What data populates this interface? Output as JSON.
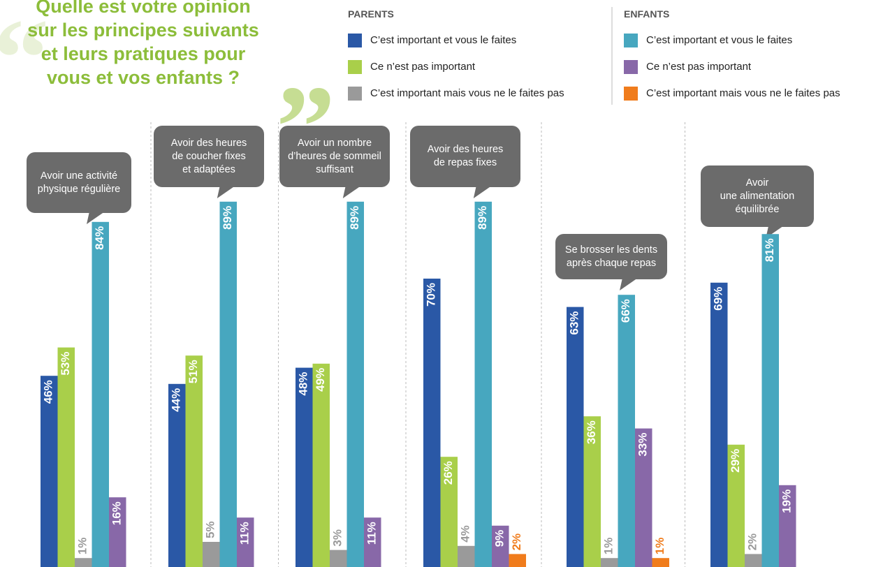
{
  "chart_data": {
    "type": "bar",
    "title": "Quelle est votre opinion\nsur les principes suivants\net leurs pratiques pour\nvous et vos enfants ?",
    "categories": [
      "Avoir une activité\nphysique régulière",
      "Avoir des heures\nde coucher fixes\net adaptées",
      "Avoir un nombre\nd’heures de sommeil\nsuffisant",
      "Avoir des heures\nde repas fixes",
      "Se brosser les dents\naprès chaque repas",
      "Avoir\nune alimentation\néquilibrée"
    ],
    "groups": [
      {
        "name": "PARENTS",
        "series": [
          {
            "name": "C’est important et vous le faites",
            "color": "#2a58a6",
            "values": [
              46,
              44,
              48,
              70,
              63,
              69
            ],
            "value_labels": [
              "46%",
              "44%",
              "48%",
              "70%",
              "63%",
              "69%"
            ]
          },
          {
            "name": "Ce n’est pas important",
            "color": "#a9cf4a",
            "values": [
              53,
              51,
              49,
              26,
              36,
              29
            ],
            "value_labels": [
              "53%",
              "51%",
              "49%",
              "26%",
              "36%",
              "29%"
            ]
          },
          {
            "name": "C’est important mais vous ne le faites pas",
            "color": "#9a9a9a",
            "values": [
              1,
              5,
              3,
              4,
              1,
              2
            ],
            "value_labels": [
              "1%",
              "5%",
              "3%",
              "4%",
              "1%",
              "2%"
            ]
          }
        ]
      },
      {
        "name": "ENFANTS",
        "series": [
          {
            "name": "C’est important et vous le faites",
            "color": "#47a7bf",
            "values": [
              84,
              89,
              89,
              89,
              66,
              81
            ],
            "value_labels": [
              "84%",
              "89%",
              "89%",
              "89%",
              "66%",
              "81%"
            ]
          },
          {
            "name": "Ce n’est pas important",
            "color": "#8868a8",
            "values": [
              16,
              11,
              11,
              9,
              33,
              19
            ],
            "value_labels": [
              "16%",
              "11%",
              "11%",
              "9%",
              "33%",
              "19%"
            ]
          },
          {
            "name": "C’est important mais vous ne le faites pas",
            "color": "#f07c1c",
            "values": [
              null,
              null,
              null,
              2,
              1,
              null
            ],
            "value_labels": [
              null,
              null,
              null,
              "2%",
              "1%",
              null
            ]
          }
        ]
      }
    ]
  }
}
